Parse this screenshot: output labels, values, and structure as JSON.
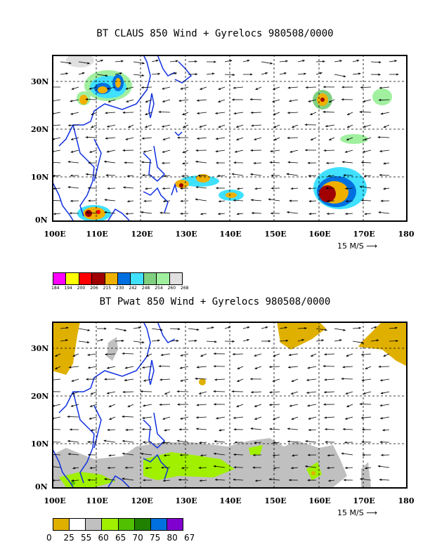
{
  "top": {
    "title": "BT CLAUS 850 Wind + Gyrelocs 980508/0000",
    "y_labels": [
      "30N",
      "20N",
      "10N",
      "0N"
    ],
    "x_labels": [
      "100E",
      "110E",
      "120E",
      "130E",
      "140E",
      "150E",
      "160E",
      "170E",
      "180"
    ],
    "vector_label": "15 M/S",
    "legend_colors": [
      "#ff00ff",
      "#ffff00",
      "#ff0000",
      "#a00000",
      "#f0b000",
      "#0070e0",
      "#40e0ff",
      "#80d080",
      "#a0f0a0",
      "#e0e0e0"
    ],
    "legend_ticks": [
      "184",
      "194",
      "200",
      "206",
      "215",
      "230",
      "242",
      "248",
      "254",
      "260",
      "268"
    ]
  },
  "bottom": {
    "title": "BT Pwat 850 Wind + Gyrelocs 980508/0000",
    "y_labels": [
      "30N",
      "20N",
      "10N",
      "0N"
    ],
    "x_labels": [
      "100E",
      "110E",
      "120E",
      "130E",
      "140E",
      "150E",
      "160E",
      "170E",
      "180"
    ],
    "vector_label": "15 M/S",
    "legend_colors": [
      "#e0b000",
      "#ffffff",
      "#c0c0c0",
      "#a0f000",
      "#50c000",
      "#208000",
      "#0070e0",
      "#8000d0"
    ],
    "legend_ticks": [
      "0",
      "25",
      "55",
      "60",
      "65",
      "70",
      "75",
      "80",
      "67"
    ]
  }
}
